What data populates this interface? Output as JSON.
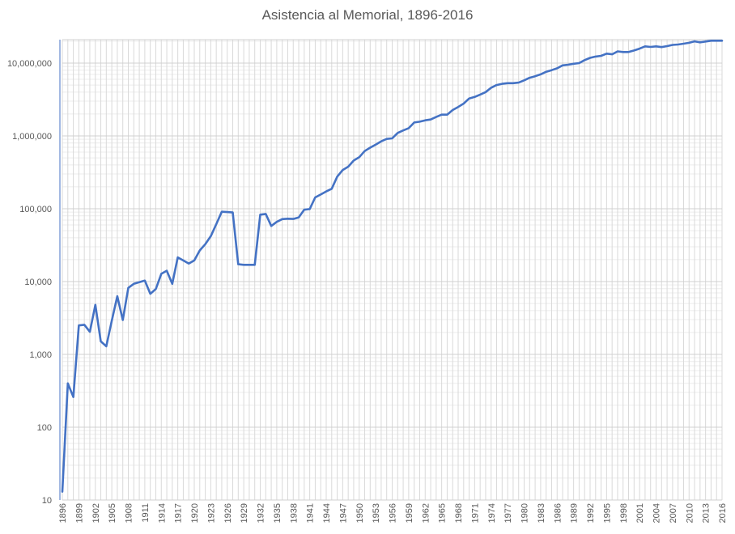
{
  "chart_data": {
    "type": "line",
    "title": "Asistencia al Memorial, 1896-2016",
    "xlabel": "",
    "ylabel": "",
    "yscale": "log",
    "ylim": [
      10,
      21000000
    ],
    "xlim": [
      1896,
      2016
    ],
    "grid": true,
    "legend": "none",
    "series_color": "#4472C4",
    "y_tick_labels": [
      "10",
      "100",
      "1,000",
      "10,000",
      "100,000",
      "1,000,000",
      "10,000,000"
    ],
    "y_tick_values": [
      10,
      100,
      1000,
      10000,
      100000,
      1000000,
      10000000
    ],
    "x_tick_labels": [
      "1896",
      "1899",
      "1902",
      "1905",
      "1908",
      "1911",
      "1914",
      "1917",
      "1920",
      "1923",
      "1926",
      "1929",
      "1932",
      "1935",
      "1938",
      "1941",
      "1944",
      "1947",
      "1950",
      "1953",
      "1956",
      "1959",
      "1962",
      "1965",
      "1968",
      "1971",
      "1974",
      "1977",
      "1980",
      "1983",
      "1986",
      "1989",
      "1992",
      "1995",
      "1998",
      "2001",
      "2004",
      "2007",
      "2010",
      "2013",
      "2016"
    ],
    "series": [
      {
        "name": "Asistencia",
        "x_start": 1896,
        "values": [
          13,
          400,
          260,
          2500,
          2550,
          2040,
          4790,
          1510,
          1290,
          2900,
          6300,
          2970,
          8200,
          9300,
          9800,
          10300,
          6800,
          7900,
          12800,
          14100,
          9300,
          21500,
          19500,
          17700,
          19500,
          26800,
          32600,
          42000,
          61500,
          91000,
          90000,
          89000,
          17300,
          17000,
          17000,
          17000,
          83000,
          85000,
          58000,
          66000,
          72000,
          73000,
          72500,
          76000,
          97000,
          99000,
          143000,
          157000,
          173000,
          188000,
          276000,
          341000,
          378000,
          460000,
          510000,
          620000,
          690000,
          760000,
          843000,
          910000,
          925000,
          1100000,
          1190000,
          1280000,
          1530000,
          1570000,
          1640000,
          1680000,
          1820000,
          1960000,
          1960000,
          2270000,
          2500000,
          2780000,
          3270000,
          3430000,
          3700000,
          4000000,
          4600000,
          5000000,
          5200000,
          5300000,
          5300000,
          5400000,
          5800000,
          6300000,
          6600000,
          7000000,
          7600000,
          8000000,
          8500000,
          9300000,
          9500000,
          9800000,
          10000000,
          11000000,
          11800000,
          12300000,
          12600000,
          13500000,
          13200000,
          14500000,
          14200000,
          14200000,
          14900000,
          15800000,
          17000000,
          16700000,
          17000000,
          16600000,
          17100000,
          17800000,
          18000000,
          18500000,
          19000000,
          19900000,
          19300000,
          19800000,
          20300000,
          20300000,
          20300000
        ]
      }
    ]
  }
}
